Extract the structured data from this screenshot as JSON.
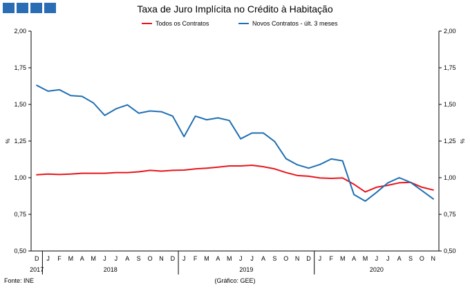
{
  "header": {
    "title": "Taxa de Juro Implícita no Crédito à Habitação"
  },
  "legend": {
    "items": [
      {
        "label": "Todos os Contratos",
        "color": "#e8141a"
      },
      {
        "label": "Novos Contratos - últ. 3 meses",
        "color": "#1f6fb2"
      }
    ]
  },
  "footer": {
    "source": "Fonte: INE",
    "credit": "(Gráfico: GEE)"
  },
  "chart_data": {
    "type": "line",
    "title": "Taxa de Juro Implícita no Crédito à Habitação",
    "ylabel": "%",
    "ylim": [
      0.5,
      2.0
    ],
    "yticks": [
      "0,50",
      "0,75",
      "1,00",
      "1,25",
      "1,50",
      "1,75",
      "2,00"
    ],
    "ytick_values": [
      0.5,
      0.75,
      1.0,
      1.25,
      1.5,
      1.75,
      2.0
    ],
    "grid": false,
    "legend_position": "top",
    "x": [
      "D",
      "J",
      "F",
      "M",
      "A",
      "M",
      "J",
      "J",
      "A",
      "S",
      "O",
      "N",
      "D",
      "J",
      "F",
      "M",
      "A",
      "M",
      "J",
      "J",
      "A",
      "S",
      "O",
      "N",
      "D",
      "J",
      "F",
      "M",
      "A",
      "M",
      "J",
      "J",
      "A",
      "S",
      "O",
      "N"
    ],
    "years": [
      {
        "label": "2017",
        "start": 0,
        "end": 0
      },
      {
        "label": "2018",
        "start": 1,
        "end": 12
      },
      {
        "label": "2019",
        "start": 13,
        "end": 24
      },
      {
        "label": "2020",
        "start": 25,
        "end": 35
      }
    ],
    "series": [
      {
        "name": "Todos os Contratos",
        "color": "#e8141a",
        "values": [
          1.02,
          1.025,
          1.022,
          1.025,
          1.03,
          1.03,
          1.03,
          1.035,
          1.035,
          1.04,
          1.05,
          1.045,
          1.05,
          1.052,
          1.06,
          1.065,
          1.072,
          1.08,
          1.08,
          1.085,
          1.075,
          1.06,
          1.035,
          1.015,
          1.01,
          0.998,
          0.995,
          0.998,
          0.955,
          0.903,
          0.935,
          0.948,
          0.965,
          0.968,
          0.935,
          0.916
        ]
      },
      {
        "name": "Novos Contratos - últ. 3 meses",
        "color": "#1f6fb2",
        "values": [
          1.63,
          1.59,
          1.6,
          1.56,
          1.555,
          1.51,
          1.425,
          1.47,
          1.497,
          1.44,
          1.455,
          1.45,
          1.42,
          1.28,
          1.42,
          1.395,
          1.408,
          1.39,
          1.265,
          1.305,
          1.305,
          1.247,
          1.13,
          1.088,
          1.065,
          1.09,
          1.128,
          1.115,
          0.885,
          0.84,
          0.9,
          0.965,
          1.0,
          0.968,
          0.912,
          0.855
        ]
      }
    ]
  }
}
